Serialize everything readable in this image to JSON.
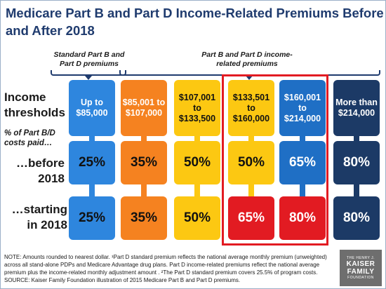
{
  "title": "Medicare Part B and Part D Income-Related Premiums Before and After 2018",
  "groups": {
    "standard": "Standard Part B and Part D premiums",
    "income_related": "Part B and Part D income-related premiums"
  },
  "row_labels": {
    "income": "Income thresholds",
    "pct": "% of Part B/D costs paid…",
    "before": "…before 2018",
    "after": "…starting in 2018"
  },
  "columns": [
    {
      "threshold": "Up to $85,000",
      "before": "25%",
      "after": "25%",
      "color_top": "#2e86de",
      "color_before": "#2e86de",
      "color_after": "#2e86de",
      "text_top": "#ffffff",
      "text_before": "#111111",
      "text_after": "#111111"
    },
    {
      "threshold": "$85,001 to $107,000",
      "before": "35%",
      "after": "35%",
      "color_top": "#f58220",
      "color_before": "#f58220",
      "color_after": "#f58220",
      "text_top": "#ffffff",
      "text_before": "#111111",
      "text_after": "#111111"
    },
    {
      "threshold": "$107,001 to $133,500",
      "before": "50%",
      "after": "50%",
      "color_top": "#fcc812",
      "color_before": "#fcc812",
      "color_after": "#fcc812",
      "text_top": "#111111",
      "text_before": "#111111",
      "text_after": "#111111"
    },
    {
      "threshold": "$133,501 to $160,000",
      "before": "50%",
      "after": "65%",
      "color_top": "#fcc812",
      "color_before": "#fcc812",
      "color_after": "#e21b22",
      "text_top": "#111111",
      "text_before": "#111111",
      "text_after": "#ffffff"
    },
    {
      "threshold": "$160,001 to $214,000",
      "before": "65%",
      "after": "80%",
      "color_top": "#1f6fc5",
      "color_before": "#1f6fc5",
      "color_after": "#e21b22",
      "text_top": "#ffffff",
      "text_before": "#ffffff",
      "text_after": "#ffffff"
    },
    {
      "threshold": "More than $214,000",
      "before": "80%",
      "after": "80%",
      "color_top": "#1c3a66",
      "color_before": "#1c3a66",
      "color_after": "#1c3a66",
      "text_top": "#ffffff",
      "text_before": "#ffffff",
      "text_after": "#ffffff"
    }
  ],
  "notes": {
    "line1": "NOTE: Amounts rounded to nearest dollar. ¹Part D standard premium reflects the national average monthly premium (unweighted) across all stand-alone PDPs and Medicare Advantage drug plans.  Part D income-related premiums reflect the national average premium plus the income-related monthly adjustment amount . ²The Part D standard premium covers 25.5% of program costs.",
    "line2": "SOURCE: Kaiser Family Foundation illustration of 2015 Medicare Part B and Part D premiums."
  },
  "logo": {
    "line1": "THE HENRY J.",
    "line2": "KAISER",
    "line3": "FAMILY",
    "line4": "FOUNDATION"
  }
}
